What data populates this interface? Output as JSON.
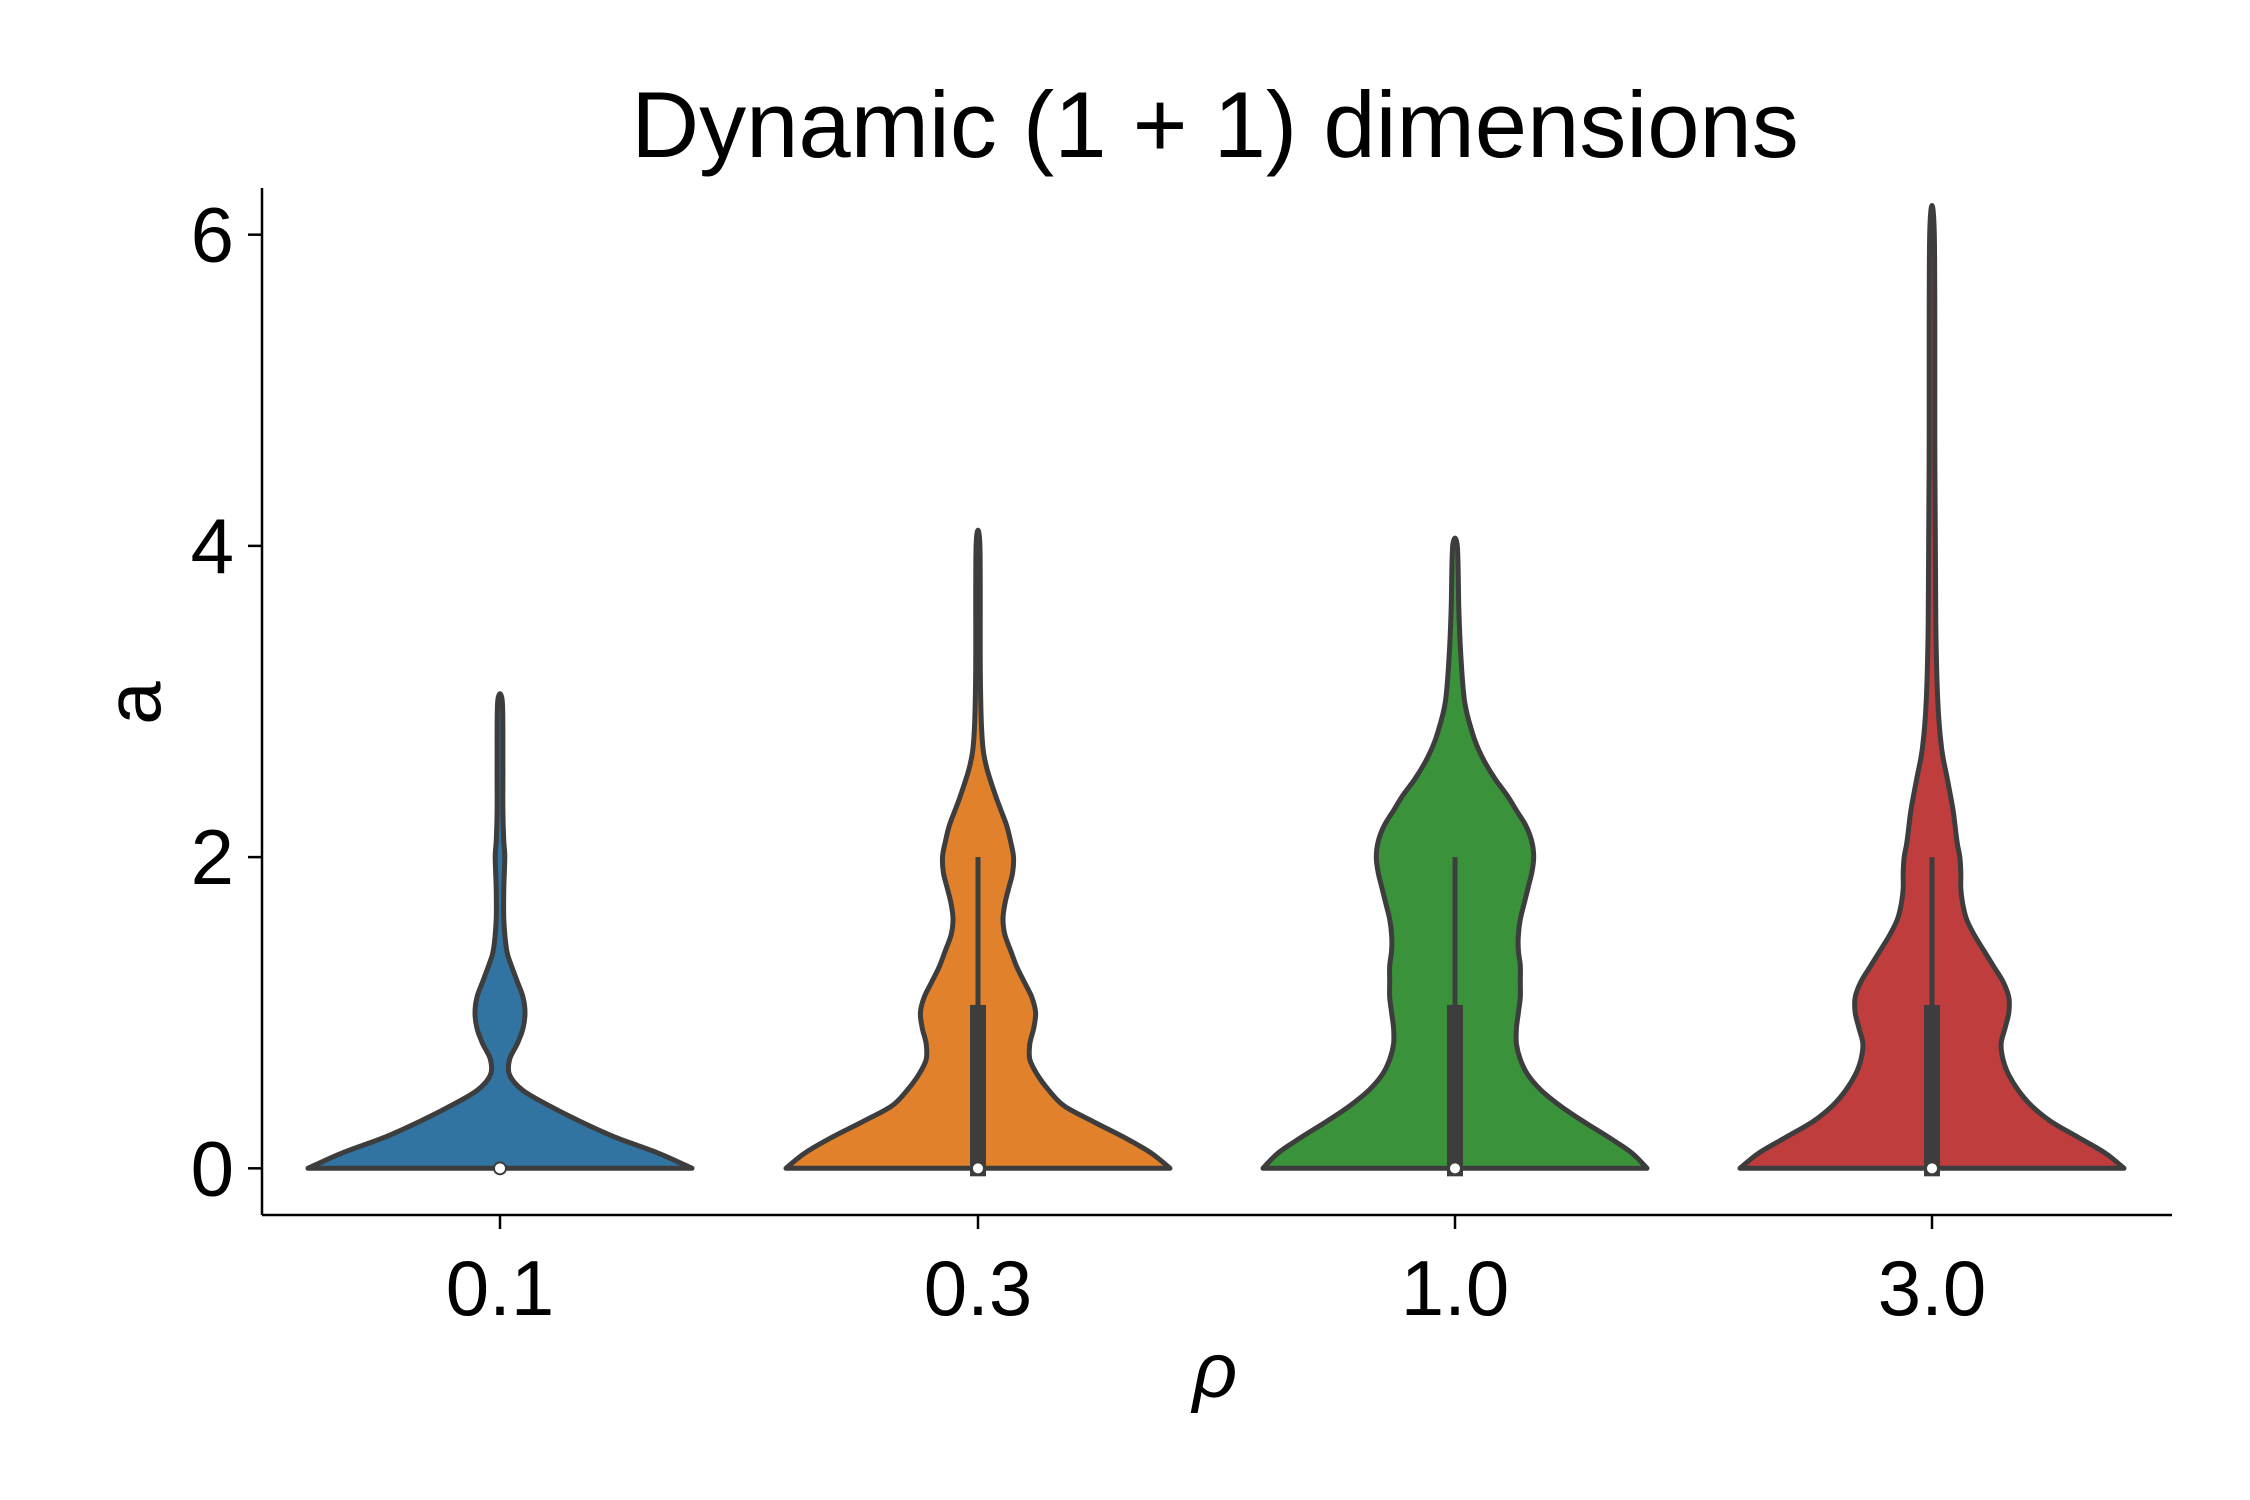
{
  "chart_data": {
    "type": "violin",
    "title": "Dynamic (1 + 1) dimensions",
    "xlabel": "ρ",
    "ylabel": "a",
    "categories": [
      "0.1",
      "0.3",
      "1.0",
      "3.0"
    ],
    "ylim": [
      -0.3,
      6.3
    ],
    "yticks": [
      0,
      2,
      4,
      6
    ],
    "grid": false,
    "colors": [
      "#3274a1",
      "#e1812c",
      "#3a923a",
      "#c03d3e"
    ],
    "violins": [
      {
        "category": "0.1",
        "min": 0,
        "max": 3,
        "q1": 0,
        "median": 0,
        "q3": 0,
        "whisker_high": 0,
        "density": [
          [
            0,
            1.0
          ],
          [
            0.1,
            0.82
          ],
          [
            0.2,
            0.6
          ],
          [
            0.3,
            0.42
          ],
          [
            0.4,
            0.26
          ],
          [
            0.5,
            0.12
          ],
          [
            0.6,
            0.05
          ],
          [
            0.7,
            0.05
          ],
          [
            0.8,
            0.09
          ],
          [
            0.9,
            0.12
          ],
          [
            1.0,
            0.13
          ],
          [
            1.1,
            0.12
          ],
          [
            1.2,
            0.09
          ],
          [
            1.3,
            0.06
          ],
          [
            1.4,
            0.035
          ],
          [
            1.6,
            0.02
          ],
          [
            1.8,
            0.02
          ],
          [
            2.0,
            0.025
          ],
          [
            2.1,
            0.02
          ],
          [
            2.3,
            0.015
          ],
          [
            2.6,
            0.015
          ],
          [
            3.0,
            0.012
          ]
        ]
      },
      {
        "category": "0.3",
        "min": 0,
        "max": 4,
        "q1": 0,
        "median": 0,
        "q3": 1.05,
        "whisker_high": 2,
        "density": [
          [
            0,
            1.0
          ],
          [
            0.1,
            0.9
          ],
          [
            0.2,
            0.76
          ],
          [
            0.3,
            0.6
          ],
          [
            0.4,
            0.45
          ],
          [
            0.5,
            0.37
          ],
          [
            0.6,
            0.31
          ],
          [
            0.7,
            0.27
          ],
          [
            0.8,
            0.27
          ],
          [
            0.9,
            0.29
          ],
          [
            1.0,
            0.3
          ],
          [
            1.1,
            0.28
          ],
          [
            1.2,
            0.24
          ],
          [
            1.3,
            0.2
          ],
          [
            1.4,
            0.17
          ],
          [
            1.5,
            0.14
          ],
          [
            1.6,
            0.13
          ],
          [
            1.7,
            0.14
          ],
          [
            1.8,
            0.16
          ],
          [
            1.9,
            0.18
          ],
          [
            2.0,
            0.185
          ],
          [
            2.1,
            0.17
          ],
          [
            2.2,
            0.15
          ],
          [
            2.3,
            0.12
          ],
          [
            2.4,
            0.09
          ],
          [
            2.6,
            0.04
          ],
          [
            2.8,
            0.02
          ],
          [
            3.2,
            0.012
          ],
          [
            4.0,
            0.01
          ]
        ]
      },
      {
        "category": "1.0",
        "min": 0,
        "max": 4,
        "q1": 0,
        "median": 0,
        "q3": 1.05,
        "whisker_high": 2,
        "density": [
          [
            0,
            1.0
          ],
          [
            0.1,
            0.92
          ],
          [
            0.2,
            0.8
          ],
          [
            0.3,
            0.67
          ],
          [
            0.4,
            0.55
          ],
          [
            0.5,
            0.45
          ],
          [
            0.6,
            0.38
          ],
          [
            0.7,
            0.34
          ],
          [
            0.8,
            0.32
          ],
          [
            0.9,
            0.32
          ],
          [
            1.0,
            0.33
          ],
          [
            1.1,
            0.34
          ],
          [
            1.2,
            0.34
          ],
          [
            1.3,
            0.34
          ],
          [
            1.4,
            0.33
          ],
          [
            1.5,
            0.33
          ],
          [
            1.6,
            0.34
          ],
          [
            1.7,
            0.36
          ],
          [
            1.8,
            0.38
          ],
          [
            1.9,
            0.4
          ],
          [
            2.0,
            0.41
          ],
          [
            2.1,
            0.4
          ],
          [
            2.2,
            0.37
          ],
          [
            2.3,
            0.32
          ],
          [
            2.4,
            0.27
          ],
          [
            2.5,
            0.21
          ],
          [
            2.6,
            0.16
          ],
          [
            2.7,
            0.12
          ],
          [
            2.8,
            0.09
          ],
          [
            3.0,
            0.05
          ],
          [
            3.3,
            0.03
          ],
          [
            3.6,
            0.02
          ],
          [
            4.0,
            0.012
          ]
        ]
      },
      {
        "category": "3.0",
        "min": 0,
        "max": 6,
        "q1": 0,
        "median": 0,
        "q3": 1.05,
        "whisker_high": 2,
        "density": [
          [
            0,
            1.0
          ],
          [
            0.1,
            0.9
          ],
          [
            0.2,
            0.76
          ],
          [
            0.3,
            0.62
          ],
          [
            0.4,
            0.52
          ],
          [
            0.5,
            0.45
          ],
          [
            0.6,
            0.4
          ],
          [
            0.7,
            0.37
          ],
          [
            0.8,
            0.36
          ],
          [
            0.9,
            0.38
          ],
          [
            1.0,
            0.4
          ],
          [
            1.1,
            0.4
          ],
          [
            1.2,
            0.37
          ],
          [
            1.3,
            0.32
          ],
          [
            1.4,
            0.27
          ],
          [
            1.5,
            0.22
          ],
          [
            1.6,
            0.18
          ],
          [
            1.7,
            0.16
          ],
          [
            1.8,
            0.15
          ],
          [
            1.9,
            0.15
          ],
          [
            2.0,
            0.145
          ],
          [
            2.1,
            0.13
          ],
          [
            2.3,
            0.11
          ],
          [
            2.5,
            0.08
          ],
          [
            2.7,
            0.05
          ],
          [
            3.0,
            0.03
          ],
          [
            3.5,
            0.02
          ],
          [
            4.5,
            0.015
          ],
          [
            6.0,
            0.012
          ]
        ]
      }
    ]
  }
}
